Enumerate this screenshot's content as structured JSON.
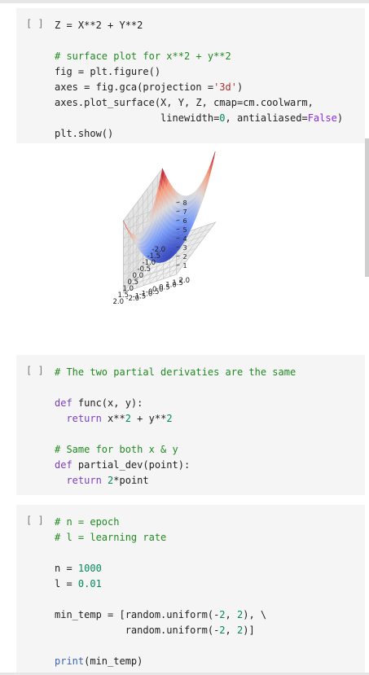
{
  "cells": [
    {
      "prompt": "[ ]",
      "lines": [
        [
          [
            "",
            "Z = X**2 + Y**2"
          ]
        ],
        [
          [
            "",
            ""
          ]
        ],
        [
          [
            "cm",
            "# surface plot for x**2 + y**2"
          ]
        ],
        [
          [
            "",
            "fig = plt.figure()"
          ]
        ],
        [
          [
            "",
            "axes = fig.gca(projection ="
          ],
          [
            "st",
            "'3d'"
          ],
          [
            "",
            ")"
          ]
        ],
        [
          [
            "",
            "axes.plot_surface(X, Y, Z, cmap=cm.coolwarm,"
          ]
        ],
        [
          [
            "",
            "                  linewidth="
          ],
          [
            "nm",
            "0"
          ],
          [
            "",
            ", antialiased="
          ],
          [
            "kw",
            "False"
          ],
          [
            "",
            ")"
          ]
        ],
        [
          [
            "",
            "plt.show()"
          ]
        ]
      ]
    },
    {
      "prompt": "[ ]",
      "lines": [
        [
          [
            "cm",
            "# The two partial derivaties are the same"
          ]
        ],
        [
          [
            "",
            ""
          ]
        ],
        [
          [
            "kwb",
            "def"
          ],
          [
            "",
            " func(x, y):"
          ]
        ],
        [
          [
            "",
            "  "
          ],
          [
            "kwb",
            "return"
          ],
          [
            "",
            " x**"
          ],
          [
            "nm",
            "2"
          ],
          [
            "",
            " + y**"
          ],
          [
            "nm",
            "2"
          ]
        ],
        [
          [
            "",
            ""
          ]
        ],
        [
          [
            "cm",
            "# Same for both x & y"
          ]
        ],
        [
          [
            "kwb",
            "def"
          ],
          [
            "",
            " partial_dev(point):"
          ]
        ],
        [
          [
            "",
            "  "
          ],
          [
            "kwb",
            "return"
          ],
          [
            "",
            " "
          ],
          [
            "nm",
            "2"
          ],
          [
            "",
            "*point"
          ]
        ]
      ]
    },
    {
      "prompt": "[ ]",
      "lines": [
        [
          [
            "cm",
            "# n = epoch"
          ]
        ],
        [
          [
            "cm",
            "# l = learning rate"
          ]
        ],
        [
          [
            "",
            ""
          ]
        ],
        [
          [
            "",
            "n = "
          ],
          [
            "nm",
            "1000"
          ]
        ],
        [
          [
            "",
            "l = "
          ],
          [
            "nm",
            "0.01"
          ]
        ],
        [
          [
            "",
            ""
          ]
        ],
        [
          [
            "",
            "min_temp = [random.uniform(-"
          ],
          [
            "nm",
            "2"
          ],
          [
            "",
            ", "
          ],
          [
            "nm",
            "2"
          ],
          [
            "",
            "), \\"
          ]
        ],
        [
          [
            "",
            "            random.uniform(-"
          ],
          [
            "nm",
            "2"
          ],
          [
            "",
            ", "
          ],
          [
            "nm",
            "2"
          ],
          [
            "",
            ")]"
          ]
        ],
        [
          [
            "",
            ""
          ]
        ],
        [
          [
            "bi",
            "print"
          ],
          [
            "",
            "(min_temp)"
          ]
        ]
      ]
    }
  ],
  "chart_data": {
    "type": "surface",
    "function": "x**2 + y**2",
    "colormap": "coolwarm",
    "x_ticks": [
      "-2.0",
      "-1.5",
      "-1.0",
      "-0.5",
      "0.0",
      "0.5",
      "1.0",
      "1.5",
      "2.0"
    ],
    "y_ticks": [
      "-2.0",
      "-1.5",
      "-1.0",
      "-0.5",
      "0.0",
      "0.5",
      "1.0",
      "1.5",
      "2.0"
    ],
    "z_ticks": [
      "1",
      "2",
      "3",
      "4",
      "5",
      "6",
      "7",
      "8"
    ],
    "xlim": [
      -2,
      2
    ],
    "ylim": [
      -2,
      2
    ],
    "zlim": [
      0,
      8
    ],
    "grid": true
  }
}
